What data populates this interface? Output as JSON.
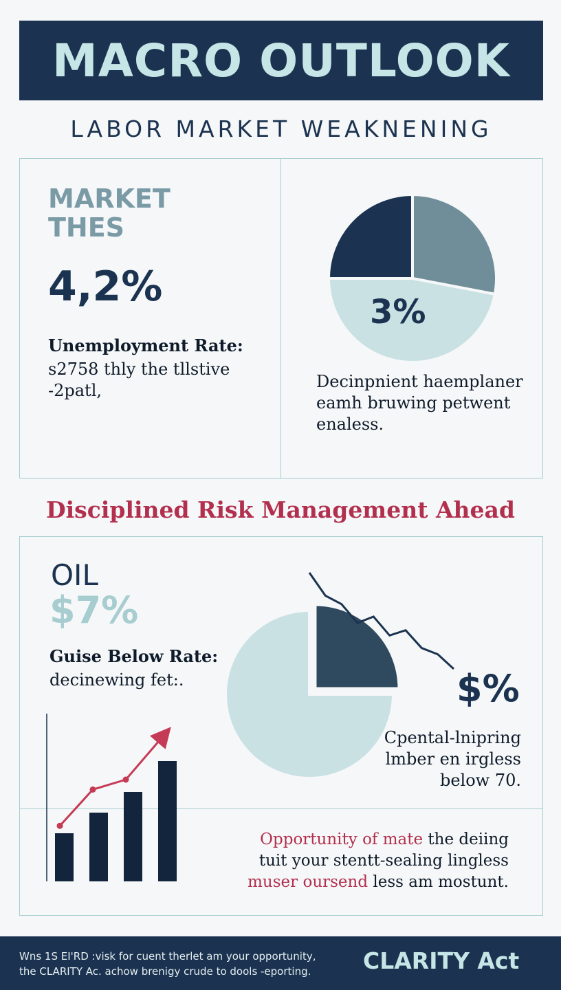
{
  "header": {
    "title": "MACRO OUTLOOK",
    "subtitle": "LABOR MARKET WEAKNENING"
  },
  "labor_panel": {
    "themes_line1": "MARKET",
    "themes_line2": "THES",
    "rate_value": "4,2%",
    "rate_label": "Unemployment Rate:",
    "rate_note_line1": "s2758 thly the tllstive",
    "rate_note_line2": "-2patl,",
    "pie_description_line1": "Decinpnient haemplaner",
    "pie_description_line2": "eamh bruwing petwent",
    "pie_description_line3": "enaless."
  },
  "headline": "Disciplined Risk Management Ahead",
  "oil_panel": {
    "title": "OIL",
    "value": "$7%",
    "label": "Guise Below Rate:",
    "note": "decinewing fet:.",
    "price_mark": "$%",
    "description_line1": "Cpental-lnipring",
    "description_line2": "lmber en irgless",
    "description_line3": "below 70.",
    "opportunity_line1_accent": "Opportunity of mate",
    "opportunity_line1_rest": " the deiing",
    "opportunity_line2": "tuit your stentt-sealing lingless",
    "opportunity_line3_accent": "muser oursend",
    "opportunity_line3_rest": " less am mostunt."
  },
  "footer": {
    "line1": "Wns 1S EI'RD :visk for cuent therlet am your opportunity,",
    "line2": "the CLARITY Ac. achow brenigy crude to dools -eporting.",
    "brand": "CLARITY Act"
  },
  "colors": {
    "navy": "#1b3350",
    "slate": "#6f8e99",
    "pale": "#c9e1e3",
    "red": "#b2304e",
    "teal_border": "#a7cdd0"
  },
  "chart_data": [
    {
      "type": "pie",
      "slices": [
        {
          "value": 25,
          "color": "#1b3350"
        },
        {
          "value": 28,
          "color": "#6f8e99"
        },
        {
          "value": 47,
          "color": "#c9e1e3"
        }
      ],
      "data_label": "3%"
    },
    {
      "type": "pie",
      "slices": [
        {
          "value": 25,
          "color": "#2f4a5e"
        },
        {
          "value": 75,
          "color": "#c9e1e3"
        }
      ]
    },
    {
      "type": "line",
      "series": [
        {
          "values": [
            100,
            78,
            70,
            52,
            58,
            40,
            45,
            28,
            22,
            8
          ]
        }
      ]
    },
    {
      "type": "bar",
      "values": [
        28,
        40,
        52,
        70
      ],
      "trend": [
        12,
        34,
        40,
        64
      ]
    }
  ]
}
